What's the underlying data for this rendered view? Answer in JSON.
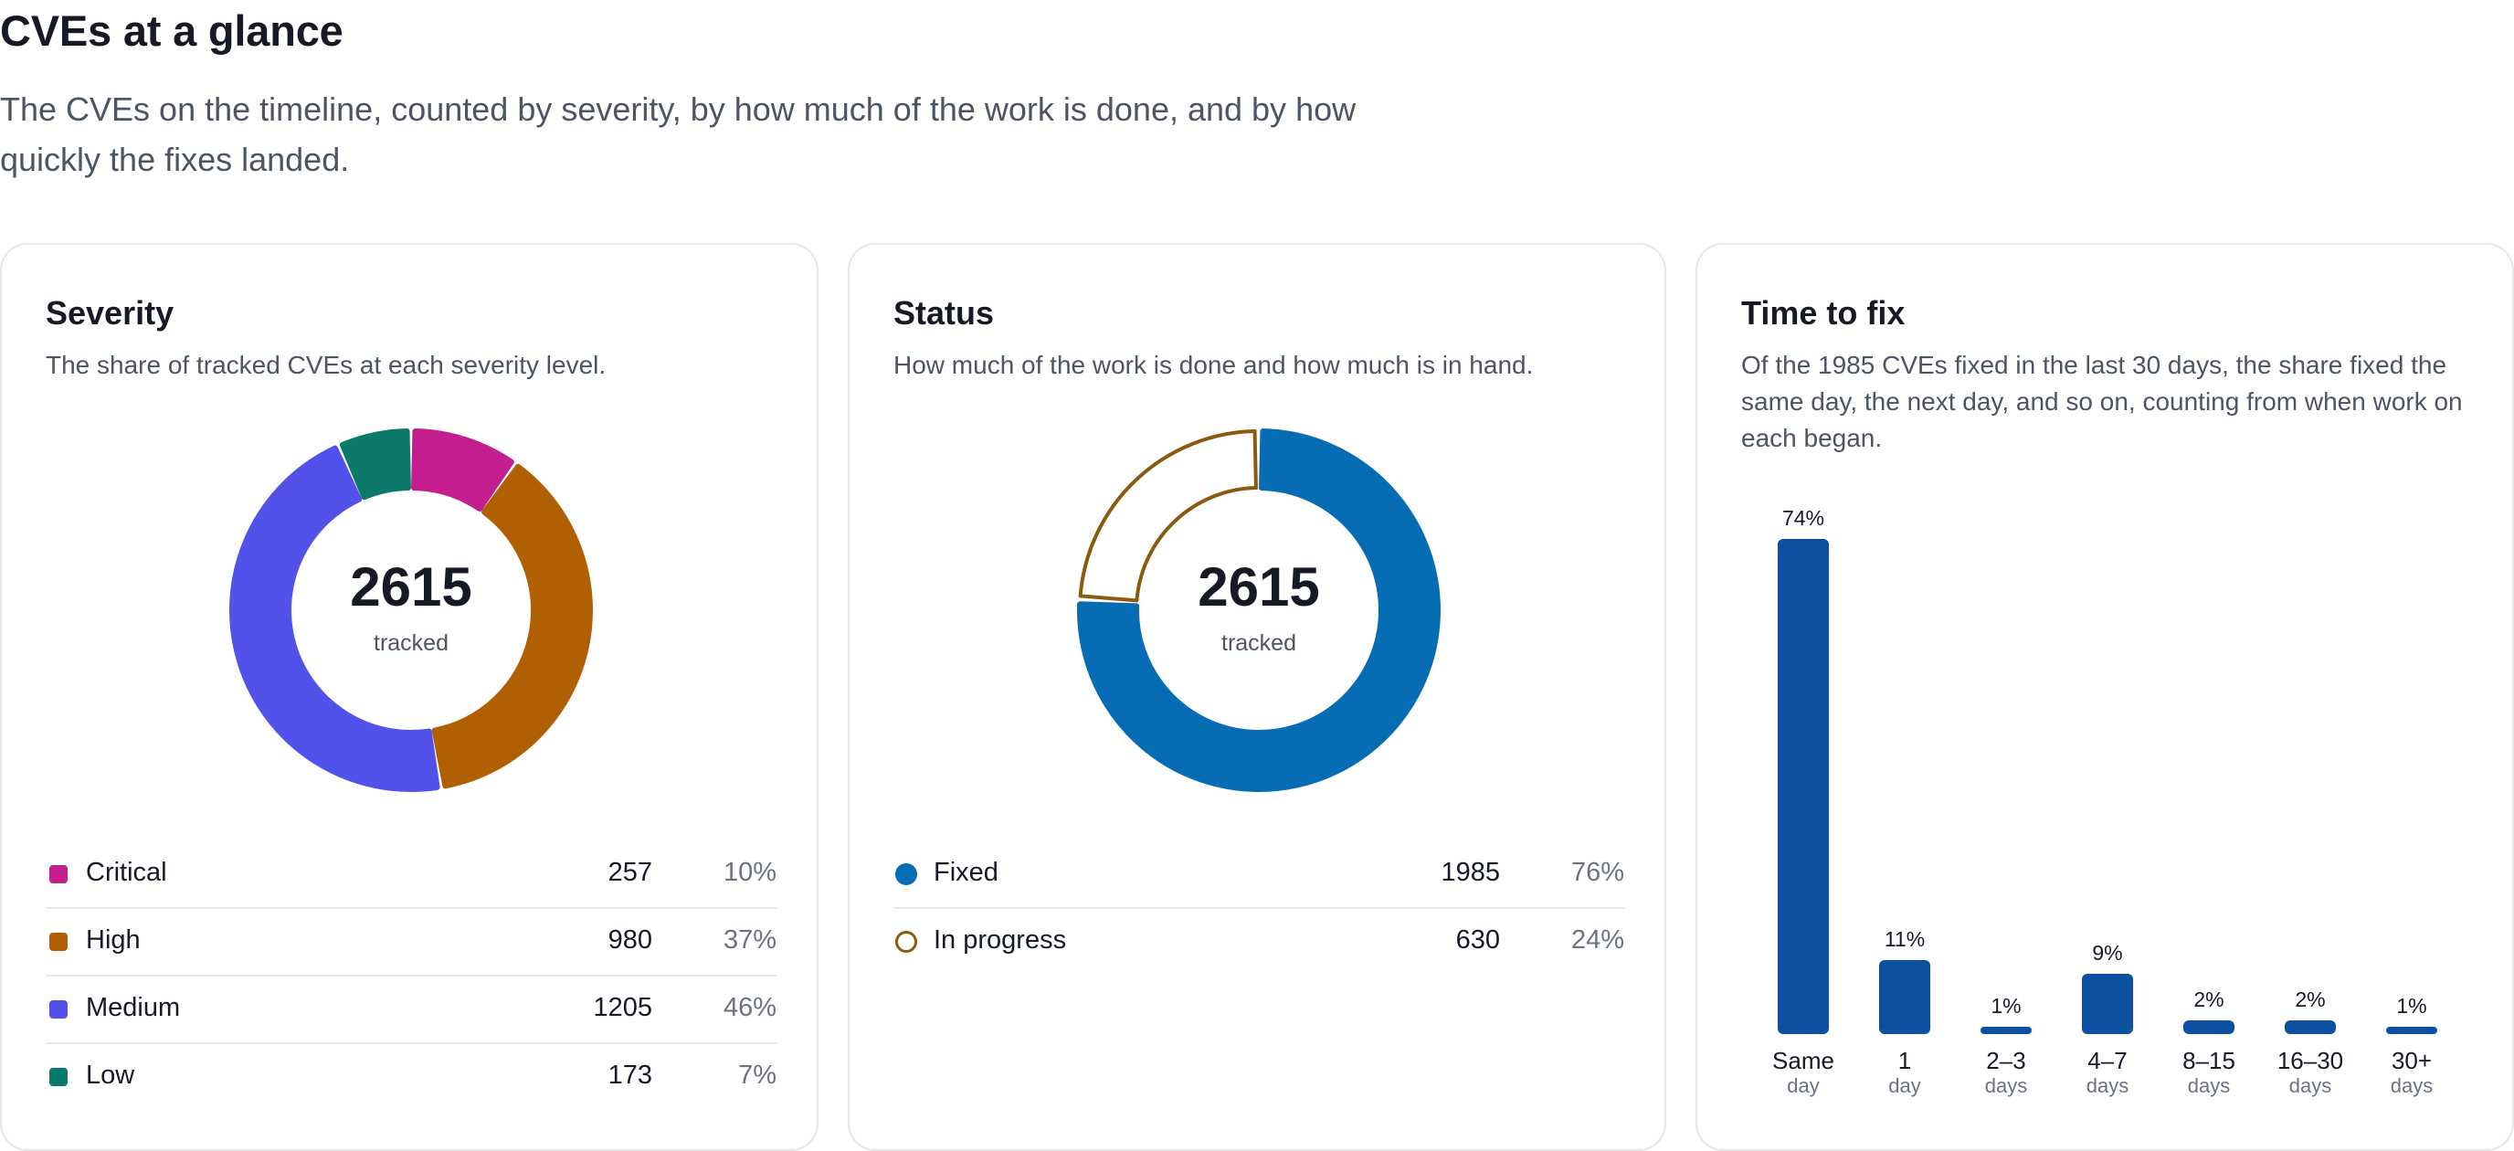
{
  "page": {
    "title": "CVEs at a glance",
    "subtitle": "The CVEs on the timeline, counted by severity, by how much of the work is done, and by how quickly the fixes landed."
  },
  "severity": {
    "title": "Severity",
    "description": "The share of tracked CVEs at each severity level.",
    "total": "2615",
    "total_label": "tracked",
    "items": [
      {
        "label": "Critical",
        "count": "257",
        "pct": "10%",
        "value": 257,
        "color": "#c41d8f"
      },
      {
        "label": "High",
        "count": "980",
        "pct": "37%",
        "value": 980,
        "color": "#b06000"
      },
      {
        "label": "Medium",
        "count": "1205",
        "pct": "46%",
        "value": 1205,
        "color": "#5252ea"
      },
      {
        "label": "Low",
        "count": "173",
        "pct": "7%",
        "value": 173,
        "color": "#0c7a6a"
      }
    ]
  },
  "status": {
    "title": "Status",
    "description": "How much of the work is done and how much is in hand.",
    "total": "2615",
    "total_label": "tracked",
    "items": [
      {
        "label": "Fixed",
        "count": "1985",
        "pct": "76%",
        "value": 1985,
        "color": "#066db5",
        "style": "filled"
      },
      {
        "label": "In progress",
        "count": "630",
        "pct": "24%",
        "value": 630,
        "color": "#8a5a0f",
        "style": "outline"
      }
    ]
  },
  "time_to_fix": {
    "title": "Time to fix",
    "description": "Of the 1985 CVEs fixed in the last 30 days, the share fixed the same day, the next day, and so on, counting from when work on each began.",
    "bar_color": "#0d4fa0"
  },
  "chart_data": [
    {
      "type": "pie",
      "title": "Severity",
      "categories": [
        "Critical",
        "High",
        "Medium",
        "Low"
      ],
      "values": [
        257,
        980,
        1205,
        173
      ],
      "percent_labels": [
        "10%",
        "37%",
        "46%",
        "7%"
      ]
    },
    {
      "type": "pie",
      "title": "Status",
      "categories": [
        "Fixed",
        "In progress"
      ],
      "values": [
        1985,
        630
      ],
      "percent_labels": [
        "76%",
        "24%"
      ]
    },
    {
      "type": "bar",
      "title": "Time to fix",
      "categories": [
        "Same day",
        "1 day",
        "2–3 days",
        "4–7 days",
        "8–15 days",
        "16–30 days",
        "30+ days"
      ],
      "category_lines": [
        [
          "Same",
          "day"
        ],
        [
          "1",
          "day"
        ],
        [
          "2–3",
          "days"
        ],
        [
          "4–7",
          "days"
        ],
        [
          "8–15",
          "days"
        ],
        [
          "16–30",
          "days"
        ],
        [
          "30+",
          "days"
        ]
      ],
      "values": [
        74,
        11,
        1,
        9,
        2,
        2,
        1
      ],
      "value_labels": [
        "74%",
        "11%",
        "1%",
        "9%",
        "2%",
        "2%",
        "1%"
      ],
      "ylim": [
        0,
        74
      ]
    }
  ]
}
